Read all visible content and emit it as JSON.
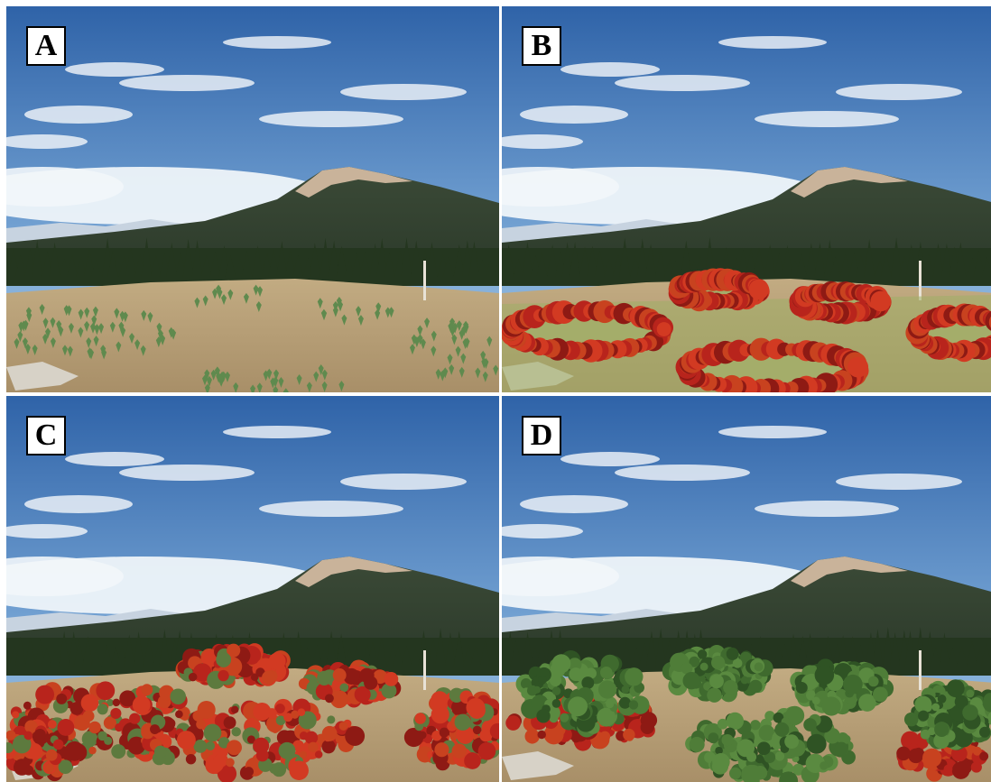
{
  "panels": [
    {
      "id": "A",
      "label": "A",
      "vegetation": "sparse-seedlings"
    },
    {
      "id": "B",
      "label": "B",
      "vegetation": "red-shrub-rings"
    },
    {
      "id": "C",
      "label": "C",
      "vegetation": "dense-red-thickets"
    },
    {
      "id": "D",
      "label": "D",
      "vegetation": "green-canopy-patches"
    }
  ],
  "colors": {
    "sky_top": "#2f63a8",
    "sky_bottom": "#a9cbe8",
    "mountain": "#2c3a2a",
    "peak": "#c9b39a",
    "ground": "#b9a07a",
    "red_shrub": "#b8241c",
    "green_canopy": "#3f6a2e"
  }
}
